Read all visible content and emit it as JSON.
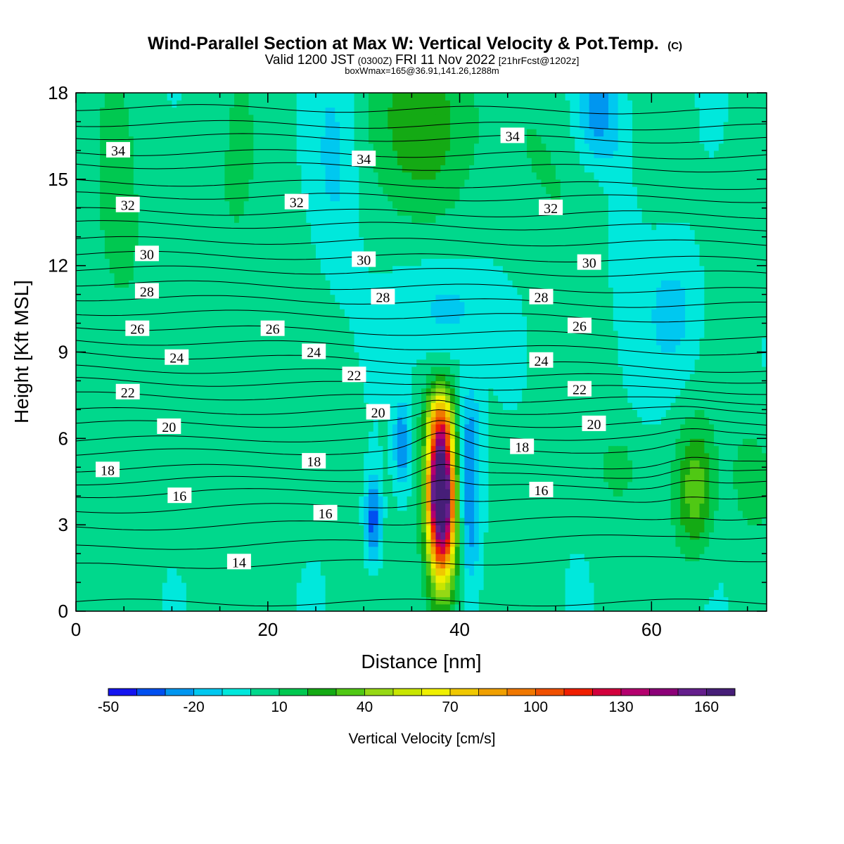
{
  "chart_data": {
    "type": "heatmap",
    "title": "Wind-Parallel Section at Max W: Vertical Velocity & Pot.Temp.",
    "title_mark": "(C)",
    "subtitle_parts": {
      "valid": "Valid 1200 JST",
      "utc": "(0300Z)",
      "date": "FRI 11 Nov 2022",
      "fcst": "[21hrFcst@1202z]"
    },
    "subtitle2": "boxWmax=165@36.91,141.26,1288m",
    "xlabel": "Distance [nm]",
    "ylabel": "Height [Kft MSL]",
    "xlim": [
      0,
      72
    ],
    "ylim": [
      0,
      18
    ],
    "x_ticks": [
      0,
      20,
      40,
      60
    ],
    "y_ticks": [
      0,
      3,
      6,
      9,
      12,
      15,
      18
    ],
    "colorbar": {
      "title": "Vertical Velocity [cm/s]",
      "min": -50,
      "max": 170,
      "step": 10,
      "tick_values": [
        -50,
        -20,
        10,
        40,
        70,
        100,
        130,
        160
      ],
      "tick_labels": [
        "-50",
        "-20",
        "10",
        "40",
        "70",
        "100",
        "130",
        "160"
      ],
      "colors": [
        "#1414f0",
        "#0050f0",
        "#0096f0",
        "#00c8f0",
        "#00e8dc",
        "#00d88c",
        "#00c850",
        "#14aa14",
        "#50c814",
        "#96d814",
        "#c8e600",
        "#f0f000",
        "#f0c800",
        "#f0a000",
        "#f07800",
        "#f05000",
        "#f01e00",
        "#d2003c",
        "#b4006e",
        "#8c0078",
        "#641e8c",
        "#461e78"
      ]
    },
    "background_w": 3,
    "w_features": [
      {
        "x": 38,
        "y": 4.4,
        "sx": 0.9,
        "sy": 1.3,
        "amp": 162
      },
      {
        "x": 38,
        "y": 6.6,
        "sx": 1.0,
        "sy": 0.9,
        "amp": 65
      },
      {
        "x": 38.2,
        "y": 2.5,
        "sx": 1.1,
        "sy": 1.6,
        "amp": 90
      },
      {
        "x": 64.5,
        "y": 4.2,
        "sx": 1.4,
        "sy": 1.5,
        "amp": 34
      },
      {
        "x": 36.5,
        "y": 17.0,
        "sx": 3.2,
        "sy": 2.2,
        "amp": 28
      },
      {
        "x": 70.5,
        "y": 4.6,
        "sx": 1.4,
        "sy": 1.2,
        "amp": 16
      },
      {
        "x": 56.5,
        "y": 5.0,
        "sx": 1.4,
        "sy": 0.9,
        "amp": 12
      },
      {
        "x": 4.5,
        "y": 12.5,
        "sx": 2.2,
        "sy": 4.0,
        "amp": 10
      },
      {
        "x": 16.5,
        "y": 10.5,
        "sx": 3.5,
        "sy": 5.5,
        "amp": 8
      },
      {
        "x": 51,
        "y": 15.5,
        "sx": 3.5,
        "sy": 2.5,
        "amp": 9
      },
      {
        "x": 31,
        "y": 3.2,
        "sx": 0.6,
        "sy": 1.1,
        "amp": -40
      },
      {
        "x": 34,
        "y": 5.8,
        "sx": 0.6,
        "sy": 1.1,
        "amp": -32
      },
      {
        "x": 41,
        "y": 5.6,
        "sx": 0.8,
        "sy": 1.6,
        "amp": -32
      },
      {
        "x": 41,
        "y": 2.6,
        "sx": 0.9,
        "sy": 1.4,
        "amp": -22
      },
      {
        "x": 38.5,
        "y": 10.5,
        "sx": 3.2,
        "sy": 1.3,
        "amp": -18
      },
      {
        "x": 27,
        "y": 15.5,
        "sx": 1.8,
        "sy": 3.0,
        "amp": -14
      },
      {
        "x": 54.5,
        "y": 17.3,
        "sx": 1.8,
        "sy": 1.3,
        "amp": -30
      },
      {
        "x": 62.5,
        "y": 10.3,
        "sx": 2.2,
        "sy": 1.8,
        "amp": -16
      },
      {
        "x": 57,
        "y": 13.5,
        "sx": 1.5,
        "sy": 2.5,
        "amp": -8
      }
    ],
    "theta_contours": [
      {
        "y0": 0.3,
        "slope": 0.0
      },
      {
        "y0": 1.55,
        "slope": 0.004
      },
      {
        "y0": 2.2,
        "slope": 0.006
      },
      {
        "y0": 2.9,
        "slope": 0.005
      },
      {
        "y0": 3.5,
        "slope": 0.006
      },
      {
        "y0": 4.05,
        "slope": 0.005
      },
      {
        "y0": 4.5,
        "slope": 0.004
      },
      {
        "y0": 4.95,
        "slope": 0.002
      },
      {
        "y0": 5.5,
        "slope": 0.002
      },
      {
        "y0": 5.95,
        "slope": 0.002
      },
      {
        "y0": 6.5,
        "slope": 0.0
      },
      {
        "y0": 6.95,
        "slope": 0.0
      },
      {
        "y0": 7.5,
        "slope": -0.003
      },
      {
        "y0": 8.0,
        "slope": -0.005
      },
      {
        "y0": 8.45,
        "slope": -0.006
      },
      {
        "y0": 8.95,
        "slope": -0.008
      },
      {
        "y0": 9.4,
        "slope": -0.006
      },
      {
        "y0": 9.9,
        "slope": -0.006
      },
      {
        "y0": 10.4,
        "slope": -0.004
      },
      {
        "y0": 10.9,
        "slope": -0.004
      },
      {
        "y0": 11.4,
        "slope": -0.004
      },
      {
        "y0": 11.9,
        "slope": -0.003
      },
      {
        "y0": 12.4,
        "slope": -0.003
      },
      {
        "y0": 12.9,
        "slope": -0.002
      },
      {
        "y0": 13.45,
        "slope": -0.002
      },
      {
        "y0": 13.9,
        "slope": -0.002
      },
      {
        "y0": 14.45,
        "slope": -0.002
      },
      {
        "y0": 14.9,
        "slope": -0.002
      },
      {
        "y0": 15.5,
        "slope": -0.002
      },
      {
        "y0": 15.95,
        "slope": -0.002
      },
      {
        "y0": 16.5,
        "slope": -0.002
      },
      {
        "y0": 16.95,
        "slope": -0.002
      },
      {
        "y0": 17.5,
        "slope": -0.002
      }
    ],
    "contour_labels": [
      {
        "text": "34",
        "x": 4.4,
        "y": 16.0
      },
      {
        "text": "34",
        "x": 30.0,
        "y": 15.7
      },
      {
        "text": "34",
        "x": 45.5,
        "y": 16.5
      },
      {
        "text": "32",
        "x": 5.4,
        "y": 14.1
      },
      {
        "text": "32",
        "x": 23.0,
        "y": 14.2
      },
      {
        "text": "32",
        "x": 49.5,
        "y": 14.0
      },
      {
        "text": "30",
        "x": 7.4,
        "y": 12.4
      },
      {
        "text": "30",
        "x": 30.0,
        "y": 12.2
      },
      {
        "text": "30",
        "x": 53.5,
        "y": 12.1
      },
      {
        "text": "28",
        "x": 7.4,
        "y": 11.1
      },
      {
        "text": "28",
        "x": 32.0,
        "y": 10.9
      },
      {
        "text": "28",
        "x": 48.5,
        "y": 10.9
      },
      {
        "text": "26",
        "x": 6.4,
        "y": 9.8
      },
      {
        "text": "26",
        "x": 20.5,
        "y": 9.8
      },
      {
        "text": "26",
        "x": 52.5,
        "y": 9.9
      },
      {
        "text": "24",
        "x": 10.5,
        "y": 8.8
      },
      {
        "text": "24",
        "x": 24.8,
        "y": 9.0
      },
      {
        "text": "24",
        "x": 48.5,
        "y": 8.7
      },
      {
        "text": "22",
        "x": 5.4,
        "y": 7.6
      },
      {
        "text": "22",
        "x": 29.0,
        "y": 8.2
      },
      {
        "text": "22",
        "x": 52.5,
        "y": 7.7
      },
      {
        "text": "20",
        "x": 9.7,
        "y": 6.4
      },
      {
        "text": "20",
        "x": 31.5,
        "y": 6.9
      },
      {
        "text": "20",
        "x": 54.0,
        "y": 6.5
      },
      {
        "text": "18",
        "x": 3.3,
        "y": 4.9
      },
      {
        "text": "18",
        "x": 24.8,
        "y": 5.2
      },
      {
        "text": "18",
        "x": 46.5,
        "y": 5.7
      },
      {
        "text": "16",
        "x": 10.8,
        "y": 4.0
      },
      {
        "text": "16",
        "x": 26.0,
        "y": 3.4
      },
      {
        "text": "16",
        "x": 48.5,
        "y": 4.2
      },
      {
        "text": "14",
        "x": 17.0,
        "y": 1.7
      }
    ]
  }
}
